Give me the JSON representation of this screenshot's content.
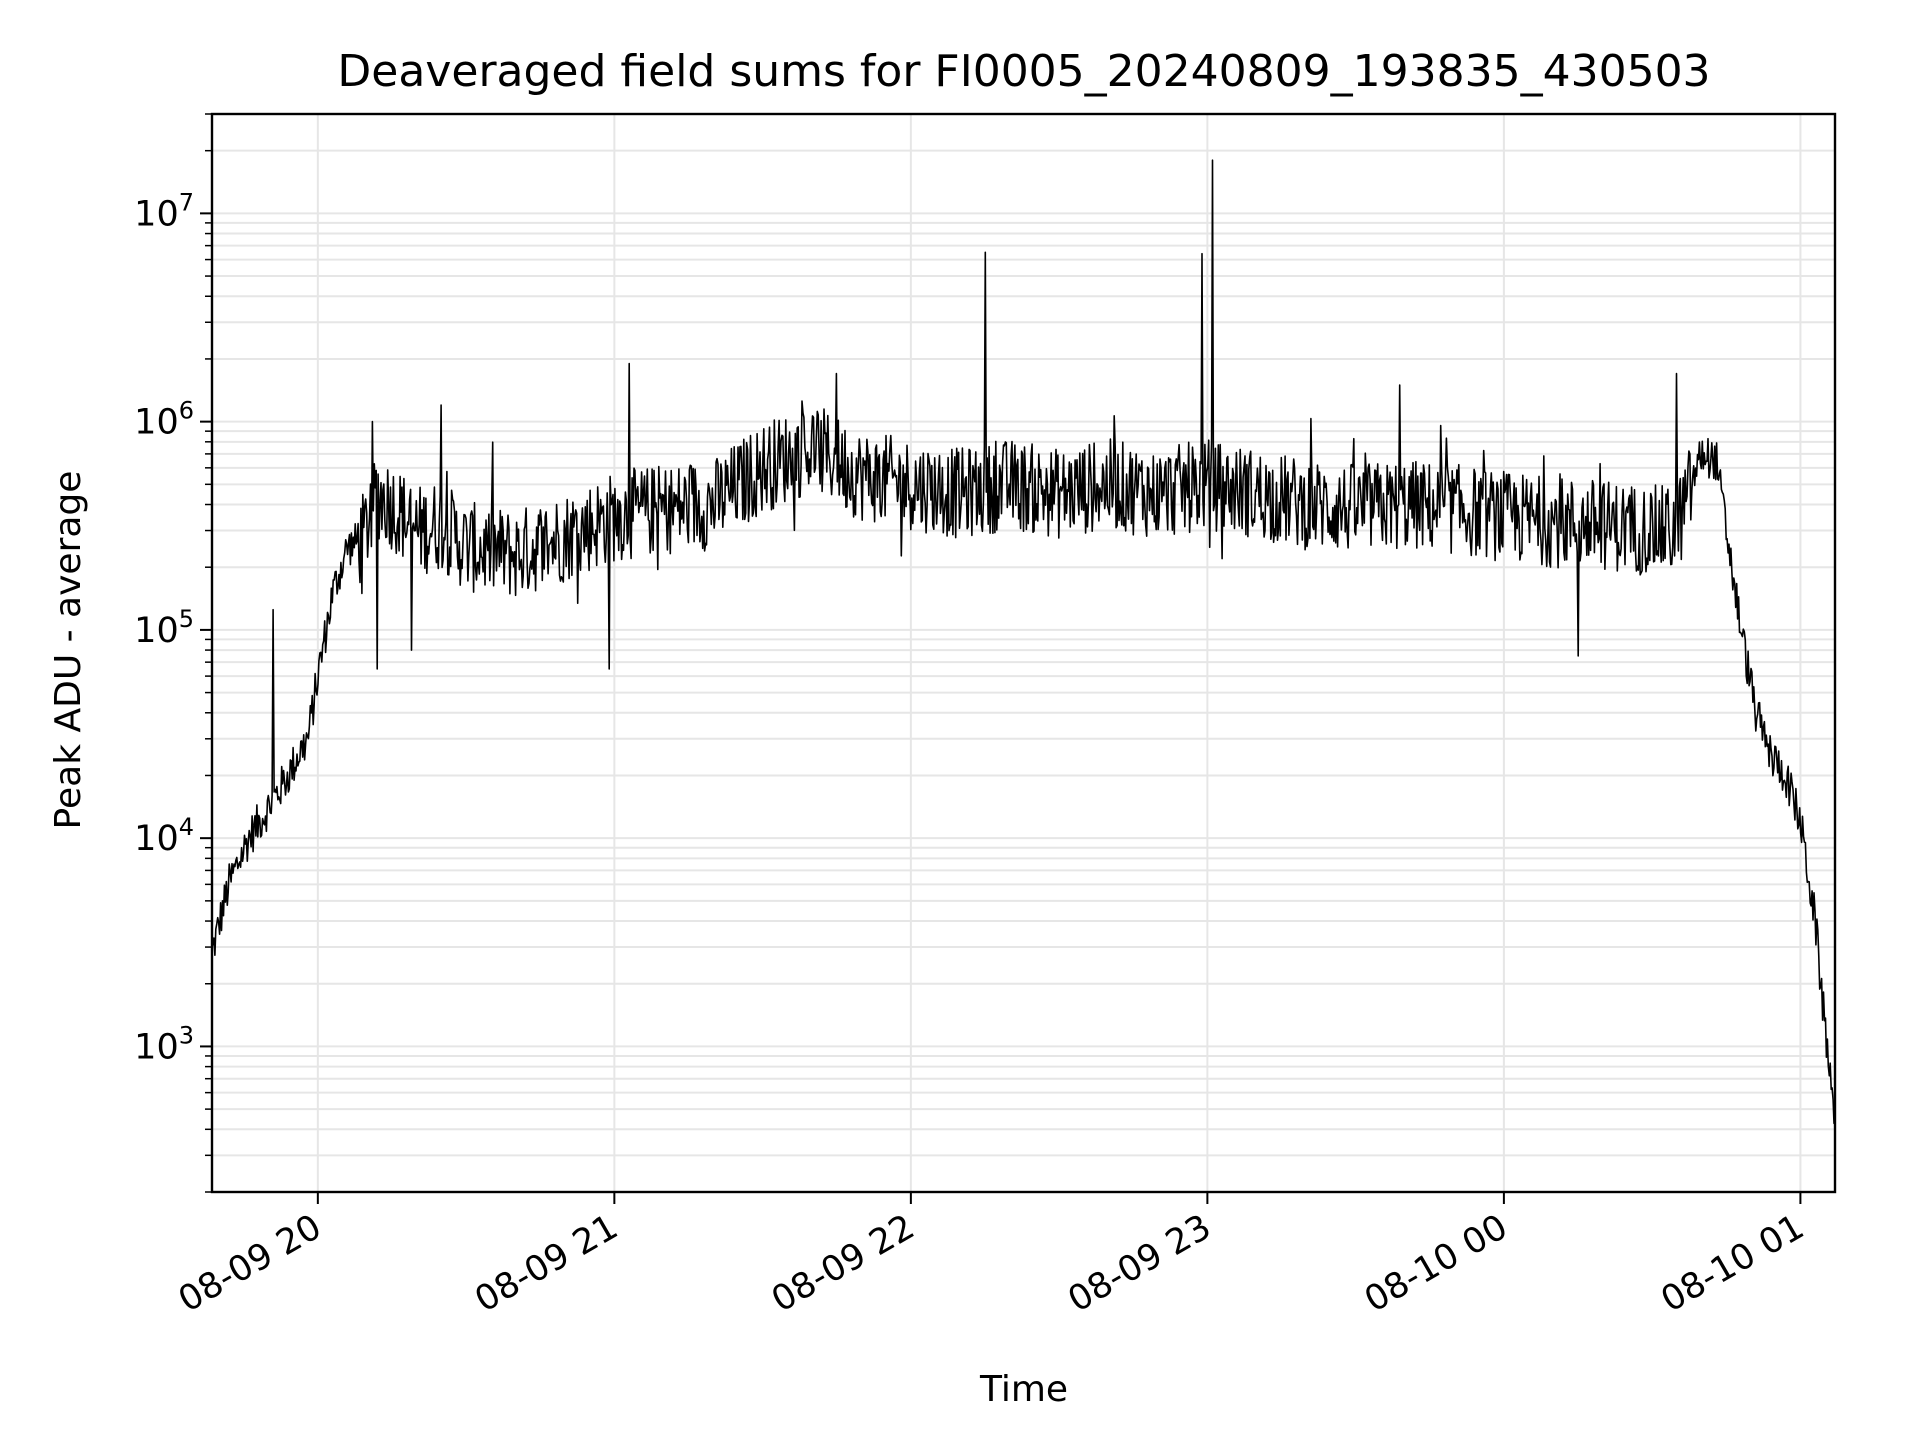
{
  "chart_data": {
    "type": "line",
    "title": "Deaveraged field sums for FI0005_20240809_193835_430503",
    "xlabel": "Time",
    "ylabel": "Peak ADU - average",
    "x_ticks": [
      "08-09 20",
      "08-09 21",
      "08-09 22",
      "08-09 23",
      "08-10 00",
      "08-10 01"
    ],
    "y_ticks": [
      {
        "base": "10",
        "exp": "3",
        "value": 1000
      },
      {
        "base": "10",
        "exp": "4",
        "value": 10000
      },
      {
        "base": "10",
        "exp": "5",
        "value": 100000
      },
      {
        "base": "10",
        "exp": "6",
        "value": 1000000
      },
      {
        "base": "10",
        "exp": "7",
        "value": 10000000
      }
    ],
    "y_scale": "log",
    "ylim": [
      200,
      30000000
    ],
    "xlim": [
      "2024-08-09 19:38:35",
      "2024-08-10 01:07:00"
    ],
    "grid": true,
    "line_color": "#000000",
    "series": [
      {
        "x": [
          "2024-08-09 19:38:35",
          "2024-08-09 19:42",
          "2024-08-09 19:46",
          "2024-08-09 19:50",
          "2024-08-09 19:54",
          "2024-08-09 19:56",
          "2024-08-09 19:58",
          "2024-08-09 20:00",
          "2024-08-09 20:03",
          "2024-08-09 20:06",
          "2024-08-09 20:09",
          "2024-08-09 20:12",
          "2024-08-09 20:15",
          "2024-08-09 20:20",
          "2024-08-09 20:25",
          "2024-08-09 20:30",
          "2024-08-09 20:40",
          "2024-08-09 20:50",
          "2024-08-09 21:00",
          "2024-08-09 21:10",
          "2024-08-09 21:20",
          "2024-08-09 21:30",
          "2024-08-09 21:40",
          "2024-08-09 21:50",
          "2024-08-09 22:00",
          "2024-08-09 22:10",
          "2024-08-09 22:20",
          "2024-08-09 22:30",
          "2024-08-09 22:40",
          "2024-08-09 22:50",
          "2024-08-09 23:00",
          "2024-08-09 23:10",
          "2024-08-09 23:20",
          "2024-08-09 23:30",
          "2024-08-09 23:40",
          "2024-08-09 23:50",
          "2024-08-10 00:00",
          "2024-08-10 00:10",
          "2024-08-10 00:20",
          "2024-08-10 00:30",
          "2024-08-10 00:35",
          "2024-08-10 00:40",
          "2024-08-10 00:43",
          "2024-08-10 00:45",
          "2024-08-10 00:48",
          "2024-08-10 00:51",
          "2024-08-10 00:54",
          "2024-08-10 00:57",
          "2024-08-10 01:00",
          "2024-08-10 01:03",
          "2024-08-10 01:05",
          "2024-08-10 01:07"
        ],
        "y": [
          2800,
          6000,
          10000,
          14000,
          20000,
          25000,
          30000,
          60000,
          150000,
          250000,
          270000,
          450000,
          400000,
          300000,
          320000,
          250000,
          230000,
          280000,
          350000,
          380000,
          400000,
          600000,
          750000,
          550000,
          500000,
          450000,
          500000,
          450000,
          500000,
          450000,
          500000,
          450000,
          400000,
          380000,
          400000,
          380000,
          350000,
          330000,
          320000,
          300000,
          300000,
          700000,
          650000,
          300000,
          100000,
          40000,
          25000,
          20000,
          12000,
          4000,
          1200,
          480
        ]
      }
    ],
    "spikes": [
      {
        "x": "2024-08-09 19:51",
        "y": 125000
      },
      {
        "x": "2024-08-09 20:11",
        "y": 1000000
      },
      {
        "x": "2024-08-09 20:12",
        "y": 65000
      },
      {
        "x": "2024-08-09 20:19",
        "y": 80000
      },
      {
        "x": "2024-08-09 20:25",
        "y": 1200000
      },
      {
        "x": "2024-08-09 20:59",
        "y": 65000
      },
      {
        "x": "2024-08-09 21:03",
        "y": 1900000
      },
      {
        "x": "2024-08-09 21:45",
        "y": 1700000
      },
      {
        "x": "2024-08-09 22:15",
        "y": 6500000
      },
      {
        "x": "2024-08-09 22:59",
        "y": 6400000
      },
      {
        "x": "2024-08-09 23:01",
        "y": 18000000
      },
      {
        "x": "2024-08-09 23:39",
        "y": 1500000
      },
      {
        "x": "2024-08-10 00:15",
        "y": 75000
      },
      {
        "x": "2024-08-10 00:35",
        "y": 1700000
      }
    ]
  }
}
